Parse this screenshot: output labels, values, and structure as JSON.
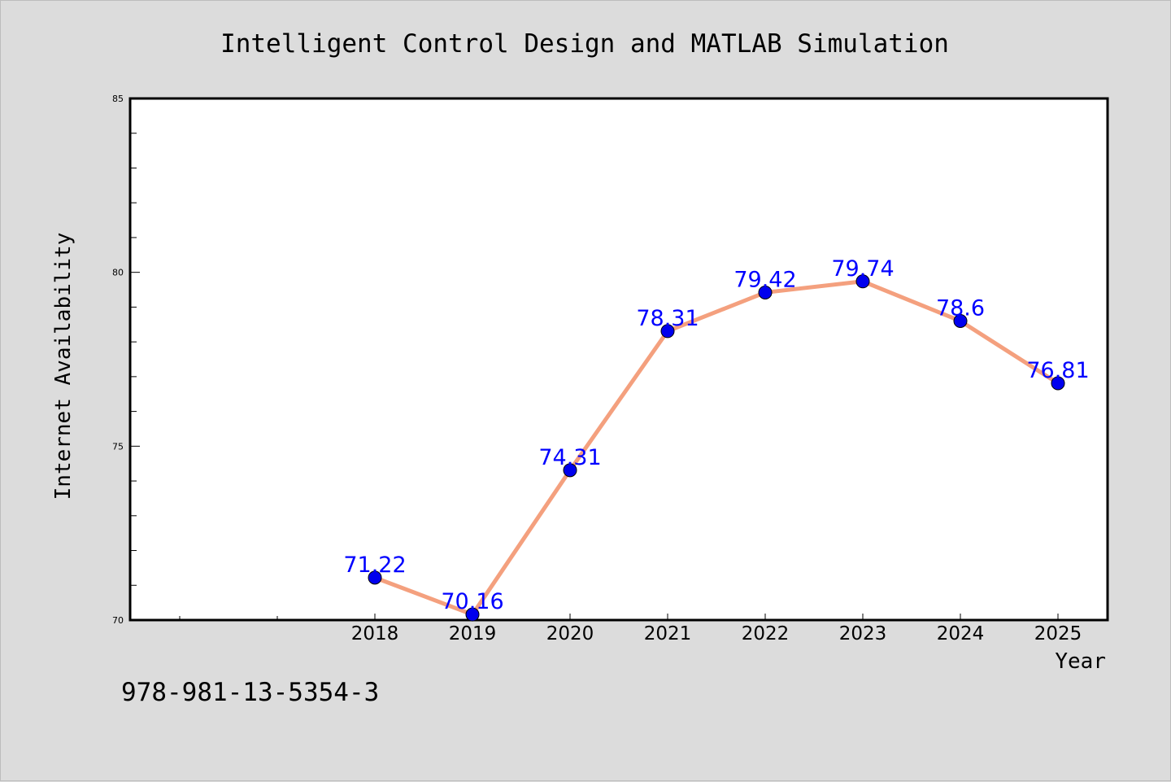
{
  "chart_data": {
    "type": "line",
    "title": "Intelligent Control Design and MATLAB Simulation",
    "xlabel": "Year",
    "ylabel": "Internet Availability",
    "categories": [
      "2018",
      "2019",
      "2020",
      "2021",
      "2022",
      "2023",
      "2024",
      "2025"
    ],
    "series": [
      {
        "values": [
          71.22,
          70.16,
          74.31,
          78.31,
          79.42,
          79.74,
          78.6,
          76.81
        ]
      }
    ],
    "data_labels": [
      "71.22",
      "70.16",
      "74.31",
      "78.31",
      "79.42",
      "79.74",
      "78.6",
      "76.81"
    ],
    "ylim": [
      70,
      85
    ],
    "yticks": [
      70,
      75,
      80,
      85
    ],
    "grid": false,
    "colors": {
      "line": "#f4a07e",
      "marker": "#0000ee",
      "label": "#0000ff",
      "plot_bg": "#ffffff",
      "figure_bg": "#dcdcdc"
    }
  },
  "footer": {
    "isbn": "978-981-13-5354-3"
  }
}
